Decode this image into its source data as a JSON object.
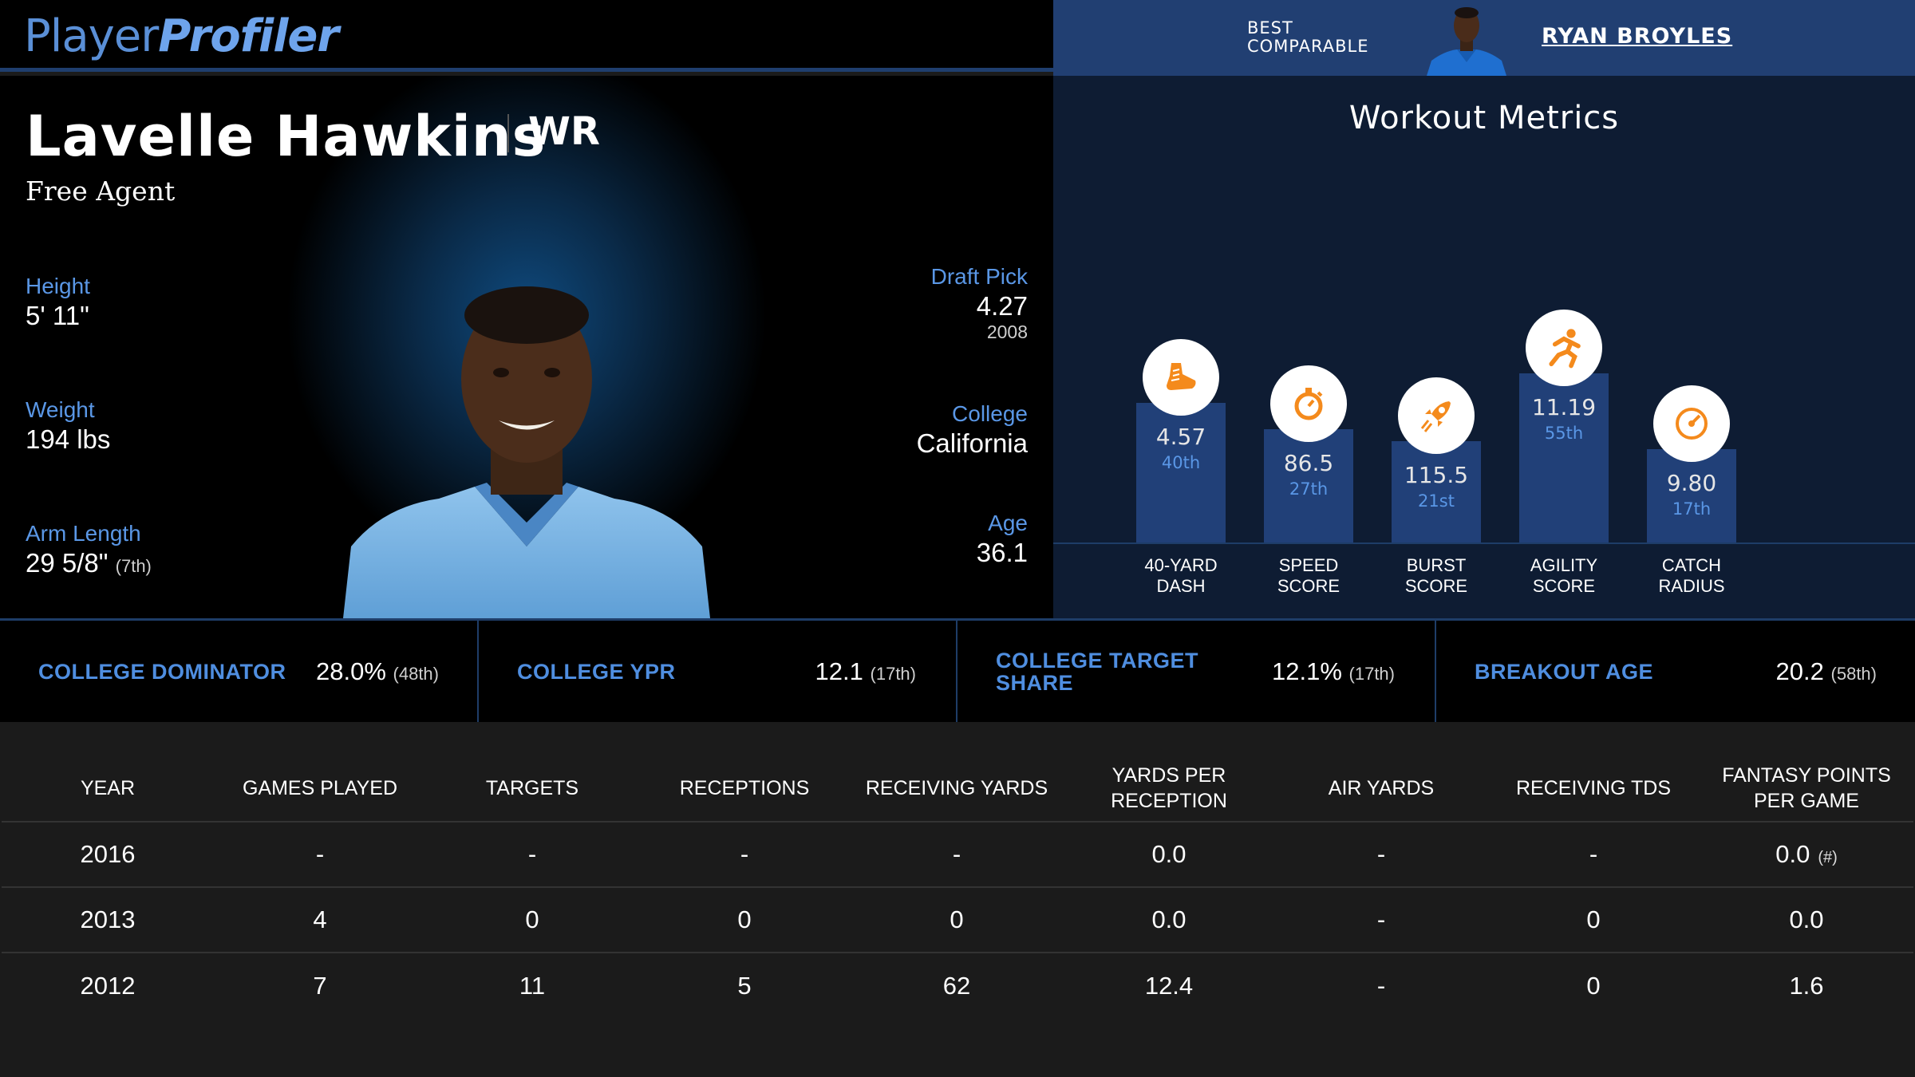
{
  "brand": {
    "part1": "Player",
    "part2": "Profiler"
  },
  "comparable": {
    "label_line1": "BEST",
    "label_line2": "COMPARABLE",
    "name": "RYAN BROYLES"
  },
  "player": {
    "name": "Lavelle Hawkins",
    "position": "WR",
    "team": "Free Agent",
    "height_label": "Height",
    "height": "5' 11\"",
    "weight_label": "Weight",
    "weight": "194 lbs",
    "arm_label": "Arm Length",
    "arm": "29 5/8\"",
    "arm_rank": "(7th)",
    "draft_label": "Draft Pick",
    "draft": "4.27",
    "draft_year": "2008",
    "college_label": "College",
    "college": "California",
    "age_label": "Age",
    "age": "36.1"
  },
  "workout": {
    "title": "Workout Metrics",
    "metrics": [
      {
        "value": "4.57",
        "pct": "40th",
        "label1": "40-YARD",
        "label2": "DASH",
        "icon": "shoe-icon",
        "percentile": 40
      },
      {
        "value": "86.5",
        "pct": "27th",
        "label1": "SPEED",
        "label2": "SCORE",
        "icon": "stopwatch-icon",
        "percentile": 27
      },
      {
        "value": "115.5",
        "pct": "21st",
        "label1": "BURST",
        "label2": "SCORE",
        "icon": "rocket-icon",
        "percentile": 21
      },
      {
        "value": "11.19",
        "pct": "55th",
        "label1": "AGILITY",
        "label2": "SCORE",
        "icon": "runner-icon",
        "percentile": 55
      },
      {
        "value": "9.80",
        "pct": "17th",
        "label1": "CATCH",
        "label2": "RADIUS",
        "icon": "target-icon",
        "percentile": 17
      }
    ]
  },
  "strip": [
    {
      "label": "COLLEGE DOMINATOR",
      "value": "28.0%",
      "rank": "(48th)"
    },
    {
      "label": "COLLEGE YPR",
      "value": "12.1",
      "rank": "(17th)"
    },
    {
      "label1": "COLLEGE TARGET",
      "label2": "SHARE",
      "value": "12.1%",
      "rank": "(17th)"
    },
    {
      "label": "BREAKOUT AGE",
      "value": "20.2",
      "rank": "(58th)"
    }
  ],
  "table": {
    "headers": [
      "YEAR",
      "GAMES PLAYED",
      "TARGETS",
      "RECEPTIONS",
      "RECEIVING YARDS",
      "YARDS PER RECEPTION",
      "AIR YARDS",
      "RECEIVING TDS",
      "FANTASY POINTS PER GAME"
    ],
    "rows": [
      [
        "2016",
        "-",
        "-",
        "-",
        "-",
        "0.0",
        "-",
        "-",
        "0.0"
      ],
      [
        "2013",
        "4",
        "0",
        "0",
        "0",
        "0.0",
        "-",
        "0",
        "0.0"
      ],
      [
        "2012",
        "7",
        "11",
        "5",
        "62",
        "12.4",
        "-",
        "0",
        "1.6"
      ]
    ],
    "note": "(#)"
  }
}
